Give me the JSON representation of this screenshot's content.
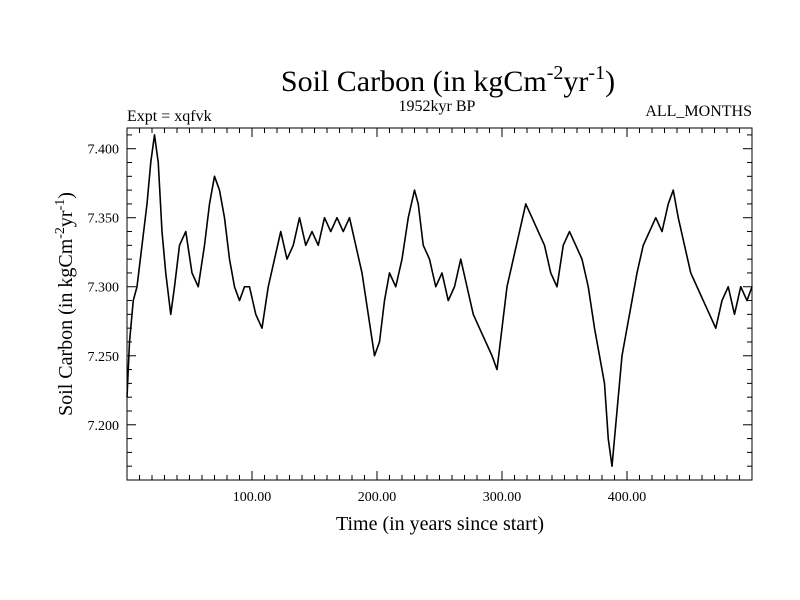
{
  "chart_data": {
    "type": "line",
    "title": "Soil Carbon (in kgCm",
    "title_sup1": "-2",
    "title_mid": "yr",
    "title_sup2": "-1",
    "title_end": ")",
    "subtitle_left": "Expt = xqfvk",
    "subtitle_center": "1952kyr BP",
    "subtitle_right": "ALL_MONTHS",
    "xlabel": "Time (in years since start)",
    "ylabel": "Soil Carbon (in kgCm",
    "ylabel_sup1": "-2",
    "ylabel_mid": "yr",
    "ylabel_sup2": "-1",
    "ylabel_end": ")",
    "xlim": [
      0,
      500
    ],
    "ylim": [
      7.16,
      7.415
    ],
    "xticks": [
      100,
      200,
      300,
      400
    ],
    "xtick_labels": [
      "100.00",
      "200.00",
      "300.00",
      "400.00"
    ],
    "yticks": [
      7.2,
      7.25,
      7.3,
      7.35,
      7.4
    ],
    "ytick_labels": [
      "7.200",
      "7.250",
      "7.300",
      "7.350",
      "7.400"
    ],
    "grid": false,
    "series": [
      {
        "x": [
          0,
          2,
          5,
          8,
          12,
          16,
          19,
          22,
          25,
          28,
          31,
          35,
          38,
          42,
          47,
          52,
          57,
          62,
          66,
          70,
          74,
          78,
          82,
          86,
          90,
          94,
          98,
          103,
          108,
          113,
          118,
          123,
          128,
          133,
          138,
          143,
          148,
          153,
          158,
          163,
          168,
          173,
          178,
          183,
          188,
          193,
          198,
          202,
          206,
          210,
          215,
          220,
          225,
          230,
          233,
          237,
          242,
          247,
          252,
          257,
          262,
          267,
          272,
          277,
          282,
          287,
          292,
          296,
          300,
          304,
          309,
          314,
          319,
          324,
          329,
          334,
          339,
          344,
          349,
          354,
          359,
          364,
          369,
          374,
          378,
          382,
          385,
          388,
          392,
          396,
          400,
          404,
          408,
          413,
          418,
          423,
          428,
          433,
          437,
          441,
          446,
          451,
          456,
          461,
          466,
          471,
          476,
          481,
          486,
          491,
          496,
          500
        ],
        "values": [
          7.22,
          7.26,
          7.29,
          7.3,
          7.33,
          7.36,
          7.39,
          7.41,
          7.39,
          7.34,
          7.31,
          7.28,
          7.3,
          7.33,
          7.34,
          7.31,
          7.3,
          7.33,
          7.36,
          7.38,
          7.37,
          7.35,
          7.32,
          7.3,
          7.29,
          7.3,
          7.3,
          7.28,
          7.27,
          7.3,
          7.32,
          7.34,
          7.32,
          7.33,
          7.35,
          7.33,
          7.34,
          7.33,
          7.35,
          7.34,
          7.35,
          7.34,
          7.35,
          7.33,
          7.31,
          7.28,
          7.25,
          7.26,
          7.29,
          7.31,
          7.3,
          7.32,
          7.35,
          7.37,
          7.36,
          7.33,
          7.32,
          7.3,
          7.31,
          7.29,
          7.3,
          7.32,
          7.3,
          7.28,
          7.27,
          7.26,
          7.25,
          7.24,
          7.27,
          7.3,
          7.32,
          7.34,
          7.36,
          7.35,
          7.34,
          7.33,
          7.31,
          7.3,
          7.33,
          7.34,
          7.33,
          7.32,
          7.3,
          7.27,
          7.25,
          7.23,
          7.19,
          7.17,
          7.21,
          7.25,
          7.27,
          7.29,
          7.31,
          7.33,
          7.34,
          7.35,
          7.34,
          7.36,
          7.37,
          7.35,
          7.33,
          7.31,
          7.3,
          7.29,
          7.28,
          7.27,
          7.29,
          7.3,
          7.28,
          7.3,
          7.29,
          7.3
        ]
      }
    ]
  }
}
